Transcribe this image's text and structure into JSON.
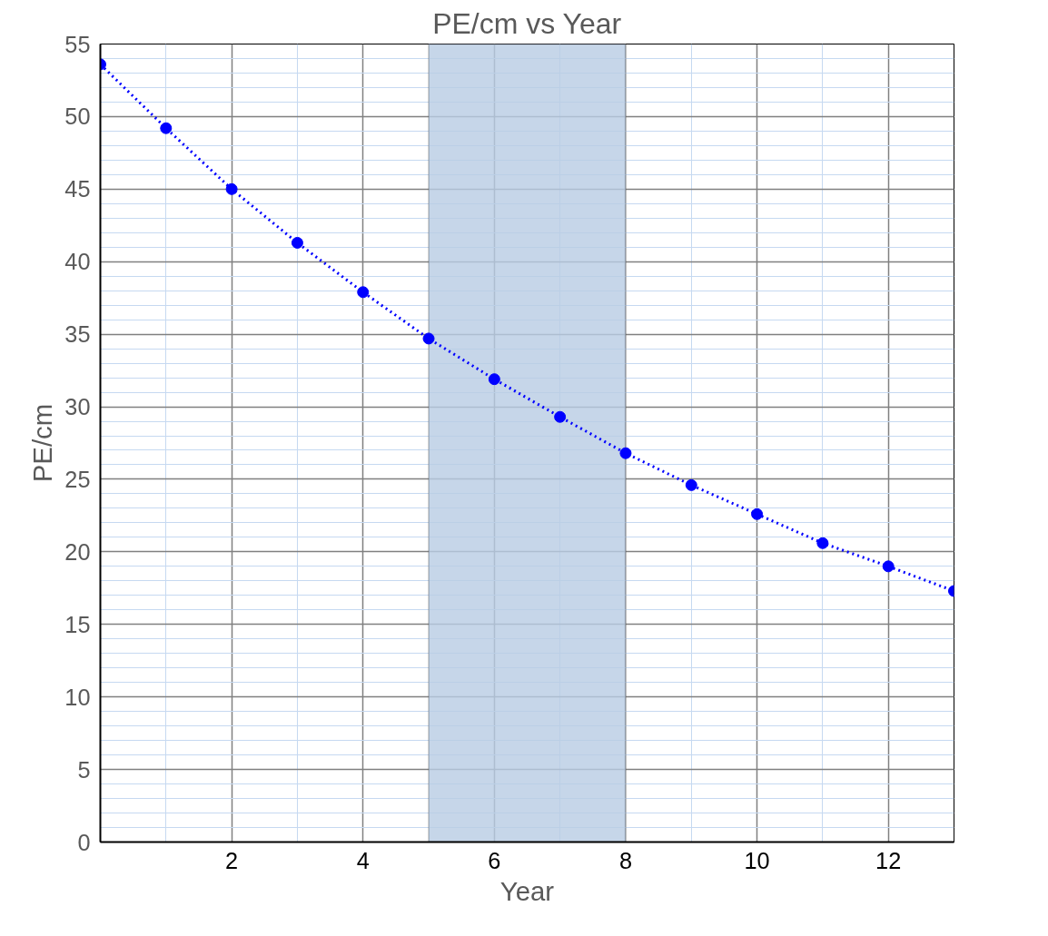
{
  "chart_data": {
    "type": "line",
    "title": "PE/cm vs Year",
    "xlabel": "Year",
    "ylabel": "PE/cm",
    "x": [
      0,
      1,
      2,
      3,
      4,
      5,
      6,
      7,
      8,
      9,
      10,
      11,
      12,
      13
    ],
    "series": [
      {
        "color": "#0000ff",
        "values": [
          53.6,
          49.2,
          45.0,
          41.3,
          37.9,
          34.7,
          31.9,
          29.3,
          26.8,
          24.6,
          22.6,
          20.6,
          19.0,
          17.3
        ]
      }
    ],
    "xlim": [
      0,
      13
    ],
    "ylim": [
      0,
      55
    ],
    "xticks": [
      {
        "value": 1,
        "label": null
      },
      2,
      {
        "value": 3,
        "label": null
      },
      4,
      {
        "value": 5,
        "label": null
      },
      6,
      {
        "value": 7,
        "label": null
      },
      8,
      {
        "value": 9,
        "label": null
      },
      10,
      {
        "value": 11,
        "label": null
      },
      12,
      {
        "value": 13,
        "label": null
      }
    ],
    "yticks": [
      0,
      5,
      10,
      15,
      20,
      25,
      30,
      35,
      40,
      45,
      50,
      55
    ],
    "bands": [
      {
        "axis": "x",
        "from": 5,
        "to": 8,
        "color": "#b8cce4"
      }
    ],
    "grid": true,
    "marker": "circle",
    "line_style": "dotted"
  }
}
